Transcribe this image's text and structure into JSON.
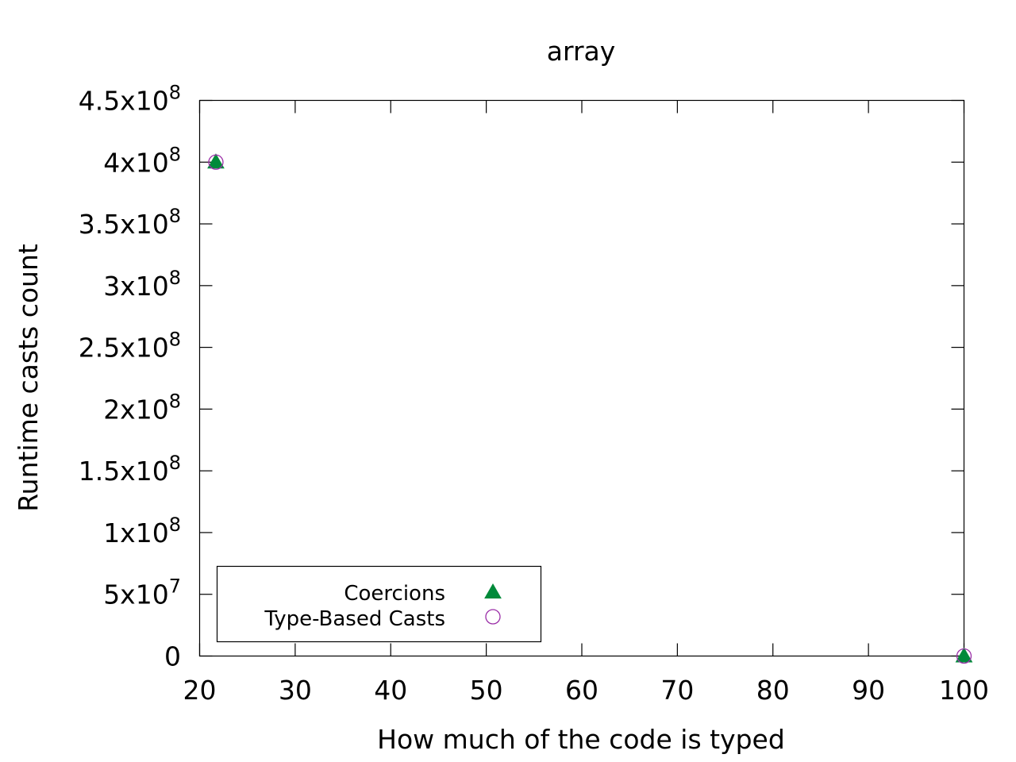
{
  "chart_data": {
    "type": "scatter",
    "title": "array",
    "xlabel": "How much of the code is typed",
    "ylabel": "Runtime casts count",
    "xlim": [
      20,
      100
    ],
    "ylim": [
      0,
      450000000
    ],
    "grid": false,
    "legend_position": "bottom-left",
    "x_ticks": [
      {
        "value": 20,
        "label": "20"
      },
      {
        "value": 30,
        "label": "30"
      },
      {
        "value": 40,
        "label": "40"
      },
      {
        "value": 50,
        "label": "50"
      },
      {
        "value": 60,
        "label": "60"
      },
      {
        "value": 70,
        "label": "70"
      },
      {
        "value": 80,
        "label": "80"
      },
      {
        "value": 90,
        "label": "90"
      },
      {
        "value": 100,
        "label": "100"
      }
    ],
    "y_ticks": [
      {
        "value": 0,
        "mantissa": "0",
        "exp": ""
      },
      {
        "value": 50000000,
        "mantissa": "5x10",
        "exp": "7"
      },
      {
        "value": 100000000,
        "mantissa": "1x10",
        "exp": "8"
      },
      {
        "value": 150000000,
        "mantissa": "1.5x10",
        "exp": "8"
      },
      {
        "value": 200000000,
        "mantissa": "2x10",
        "exp": "8"
      },
      {
        "value": 250000000,
        "mantissa": "2.5x10",
        "exp": "8"
      },
      {
        "value": 300000000,
        "mantissa": "3x10",
        "exp": "8"
      },
      {
        "value": 350000000,
        "mantissa": "3.5x10",
        "exp": "8"
      },
      {
        "value": 400000000,
        "mantissa": "4x10",
        "exp": "8"
      },
      {
        "value": 450000000,
        "mantissa": "4.5x10",
        "exp": "8"
      }
    ],
    "series": [
      {
        "name": "Coercions",
        "marker": "filled-triangle",
        "color": "#008a3a",
        "points": [
          [
            21.7,
            400000000
          ],
          [
            100,
            0
          ]
        ]
      },
      {
        "name": "Type-Based Casts",
        "marker": "open-circle",
        "color": "#9b2fa8",
        "points": [
          [
            21.7,
            400000000
          ],
          [
            100,
            0
          ]
        ]
      }
    ]
  }
}
